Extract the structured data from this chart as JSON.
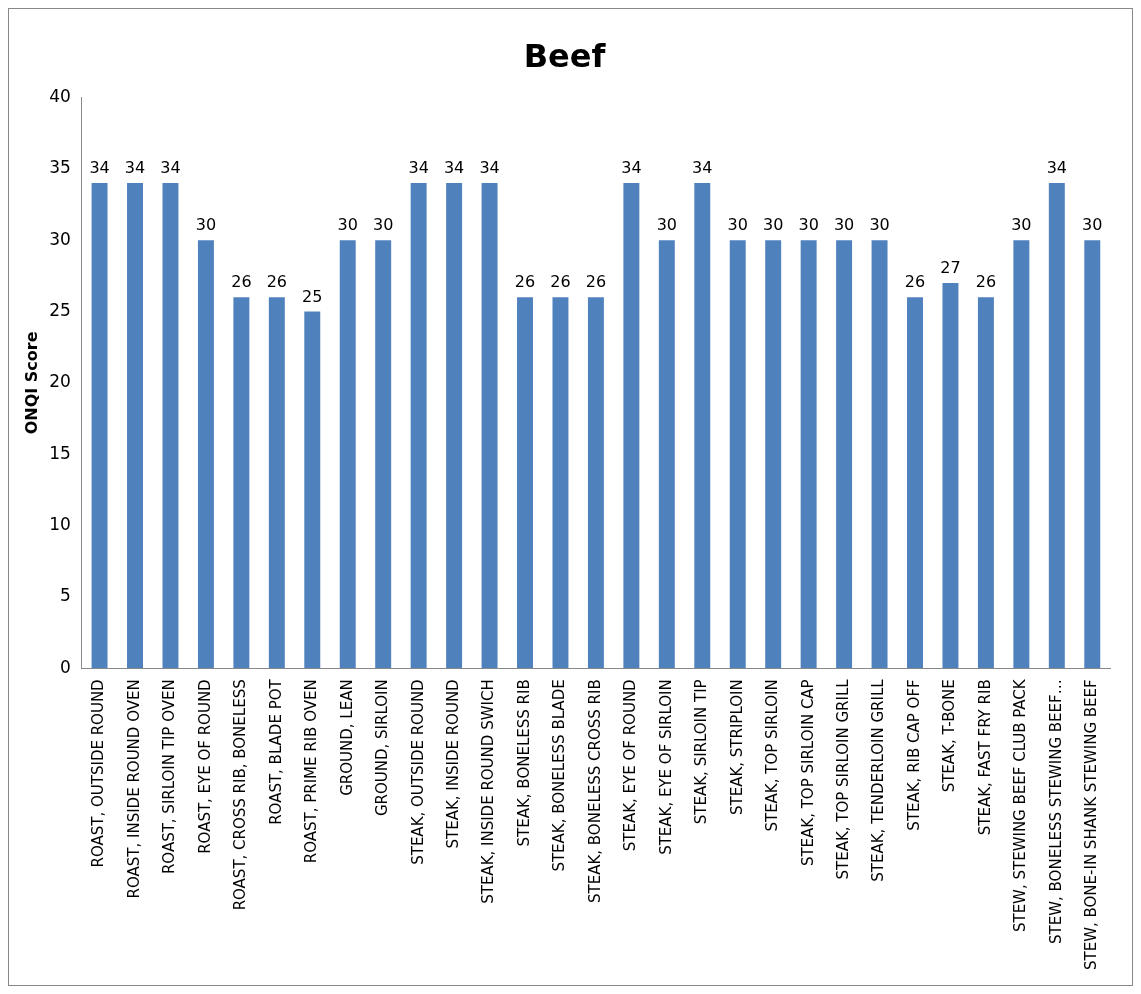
{
  "chart_data": {
    "type": "bar",
    "title": "Beef",
    "ylabel": "ONQI Score",
    "categories": [
      "ROAST, OUTSIDE ROUND",
      "ROAST, INSIDE ROUND OVEN",
      "ROAST, SIRLOIN TIP OVEN",
      "ROAST, EYE OF ROUND",
      "ROAST, CROSS RIB, BONELESS",
      "ROAST, BLADE POT",
      "ROAST, PRIME RIB OVEN",
      "GROUND, LEAN",
      "GROUND, SIRLOIN",
      "STEAK, OUTSIDE ROUND",
      "STEAK, INSIDE ROUND",
      "STEAK, INSIDE ROUND SWICH",
      "STEAK, BONELESS RIB",
      "STEAK, BONELESS BLADE",
      "STEAK, BONELESS CROSS RIB",
      "STEAK, EYE OF ROUND",
      "STEAK, EYE OF SIRLOIN",
      "STEAK, SIRLOIN TIP",
      "STEAK, STRIPLOIN",
      "STEAK, TOP SIRLOIN",
      "STEAK, TOP SIRLOIN CAP",
      "STEAK, TOP SIRLOIN GRILL",
      "STEAK, TENDERLOIN GRILL",
      "STEAK, RIB CAP OFF",
      "STEAK, T-BONE",
      "STEAK, FAST FRY RIB",
      "STEW, STEWING BEEF CLUB PACK",
      "STEW, BONELESS STEWING BEEF…",
      "STEW, BONE-IN SHANK STEWING BEEF"
    ],
    "values": [
      34,
      34,
      34,
      30,
      26,
      26,
      25,
      30,
      30,
      34,
      34,
      34,
      26,
      26,
      26,
      34,
      30,
      34,
      30,
      30,
      30,
      30,
      30,
      26,
      27,
      26,
      30,
      34,
      30
    ],
    "color": "#4f81bd",
    "ylim": [
      0,
      40
    ],
    "yticks": [
      0,
      5,
      10,
      15,
      20,
      25,
      30,
      35,
      40
    ],
    "grid": false,
    "legend": false,
    "data_labels": true
  }
}
